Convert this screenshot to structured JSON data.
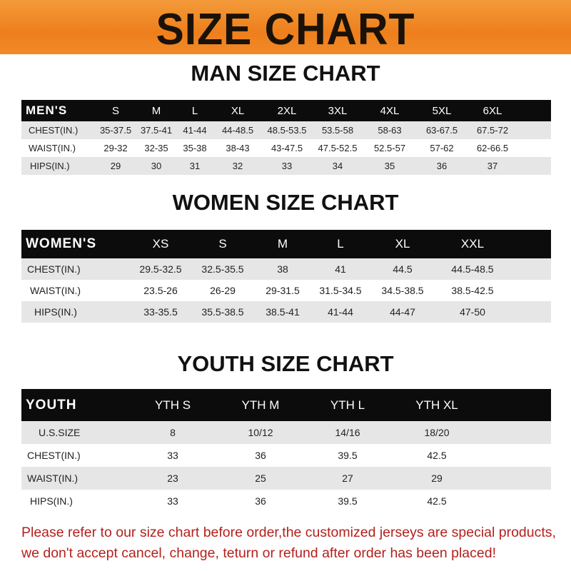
{
  "banner": {
    "title": "SIZE CHART",
    "color": "#ee7f1c"
  },
  "men": {
    "title": "MAN SIZE CHART",
    "header": [
      "MEN'S",
      "S",
      "M",
      "L",
      "XL",
      "2XL",
      "3XL",
      "4XL",
      "5XL",
      "6XL"
    ],
    "rows": [
      [
        "CHEST(IN.)",
        "35-37.5",
        "37.5-41",
        "41-44",
        "44-48.5",
        "48.5-53.5",
        "53.5-58",
        "58-63",
        "63-67.5",
        "67.5-72"
      ],
      [
        "WAIST(IN.)",
        "29-32",
        "32-35",
        "35-38",
        "38-43",
        "43-47.5",
        "47.5-52.5",
        "52.5-57",
        "57-62",
        "62-66.5"
      ],
      [
        "HIPS(IN.)",
        "29",
        "30",
        "31",
        "32",
        "33",
        "34",
        "35",
        "36",
        "37"
      ]
    ]
  },
  "women": {
    "title": "WOMEN SIZE CHART",
    "header": [
      "WOMEN'S",
      "XS",
      "S",
      "M",
      "L",
      "XL",
      "XXL"
    ],
    "rows": [
      [
        "CHEST(IN.)",
        "29.5-32.5",
        "32.5-35.5",
        "38",
        "41",
        "44.5",
        "44.5-48.5"
      ],
      [
        "WAIST(IN.)",
        "23.5-26",
        "26-29",
        "29-31.5",
        "31.5-34.5",
        "34.5-38.5",
        "38.5-42.5"
      ],
      [
        "HIPS(IN.)",
        "33-35.5",
        "35.5-38.5",
        "38.5-41",
        "41-44",
        "44-47",
        "47-50"
      ]
    ]
  },
  "youth": {
    "title": "YOUTH SIZE CHART",
    "header": [
      "YOUTH",
      "YTH S",
      "YTH M",
      "YTH L",
      "YTH XL"
    ],
    "rows": [
      [
        "U.S.SIZE",
        "8",
        "10/12",
        "14/16",
        "18/20"
      ],
      [
        "CHEST(IN.)",
        "33",
        "36",
        "39.5",
        "42.5"
      ],
      [
        "WAIST(IN.)",
        "23",
        "25",
        "27",
        "29"
      ],
      [
        "HIPS(IN.)",
        "33",
        "36",
        "39.5",
        "42.5"
      ]
    ]
  },
  "footer": {
    "line1": "Please refer to our size chart before order,the customized jerseys are special products,",
    "line2": "we don't accept cancel, change, teturn or refund after order has been placed!",
    "color": "#b3211d"
  }
}
